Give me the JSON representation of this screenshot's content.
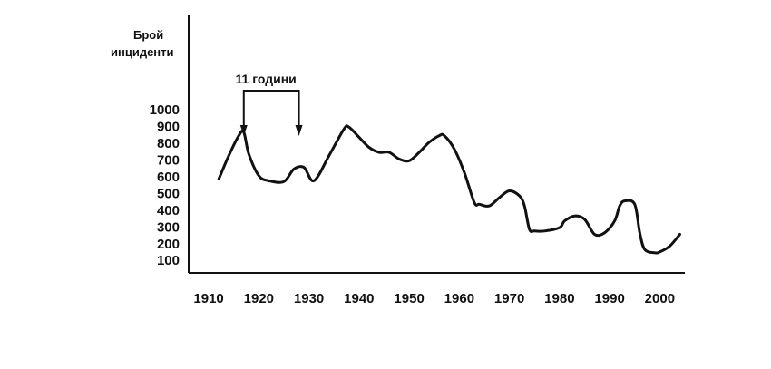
{
  "chart_data": {
    "type": "line",
    "title": "",
    "xlabel": "",
    "ylabel_lines": [
      "Брой",
      "инциденти"
    ],
    "xlim": [
      1906,
      2005
    ],
    "ylim": [
      20,
      1000
    ],
    "xticks": [
      1910,
      1920,
      1930,
      1940,
      1950,
      1960,
      1970,
      1980,
      1990,
      2000
    ],
    "yticks": [
      100,
      200,
      300,
      400,
      500,
      600,
      700,
      800,
      900,
      1000
    ],
    "grid": false,
    "series": [
      {
        "x": [
          1912,
          1914,
          1916,
          1917,
          1918,
          1920,
          1922,
          1925,
          1927,
          1929,
          1931,
          1934,
          1937,
          1938,
          1940,
          1942,
          1944,
          1946,
          1948,
          1950,
          1952,
          1954,
          1956,
          1957,
          1959,
          1961,
          1963,
          1964,
          1966,
          1968,
          1970,
          1972,
          1973,
          1974,
          1975,
          1977,
          1980,
          1981,
          1983,
          1985,
          1987,
          1989,
          1991,
          1992,
          1993,
          1995,
          1996,
          1997,
          1999,
          2000,
          2002,
          2004
        ],
        "y": [
          580,
          720,
          840,
          860,
          730,
          600,
          570,
          565,
          640,
          650,
          570,
          720,
          880,
          890,
          830,
          770,
          740,
          740,
          700,
          690,
          740,
          800,
          840,
          840,
          760,
          620,
          440,
          430,
          420,
          470,
          510,
          480,
          420,
          280,
          270,
          270,
          290,
          330,
          360,
          340,
          250,
          260,
          330,
          420,
          450,
          430,
          260,
          160,
          140,
          145,
          180,
          250
        ]
      }
    ],
    "annotations": [
      {
        "text": "11 години",
        "from_x": 1917,
        "to_x": 1928
      }
    ],
    "colors": {
      "line": "#111111",
      "axis": "#111111"
    }
  }
}
